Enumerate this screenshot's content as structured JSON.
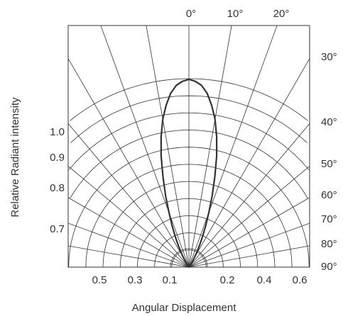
{
  "chart_data": {
    "type": "polar",
    "xlabel": "Angular Displacement",
    "ylabel": "Relative Radiant intensity",
    "angle_labels": [
      "0°",
      "10°",
      "20°",
      "30°",
      "40°",
      "50°",
      "60°",
      "70°",
      "80°",
      "90°"
    ],
    "radial_labels": [
      "1.0",
      "0.9",
      "0.8",
      "0.7"
    ],
    "bottom_labels": [
      "0.5",
      "0.3",
      "0.1",
      "0.2",
      "0.4",
      "0.6"
    ],
    "radial_max": 1.0,
    "pattern": {
      "angle_deg": [
        0,
        2,
        4,
        6,
        8,
        10,
        12,
        14,
        16,
        18,
        20,
        22,
        24,
        26,
        28,
        30,
        35,
        40,
        50,
        60,
        70,
        80,
        90
      ],
      "relative_intensity": [
        1.0,
        0.99,
        0.97,
        0.93,
        0.87,
        0.8,
        0.71,
        0.61,
        0.5,
        0.4,
        0.31,
        0.24,
        0.18,
        0.13,
        0.09,
        0.06,
        0.02,
        0.01,
        0,
        0,
        0,
        0,
        0
      ]
    },
    "colors": {
      "grid": "#333333",
      "curve": "#333333"
    }
  }
}
